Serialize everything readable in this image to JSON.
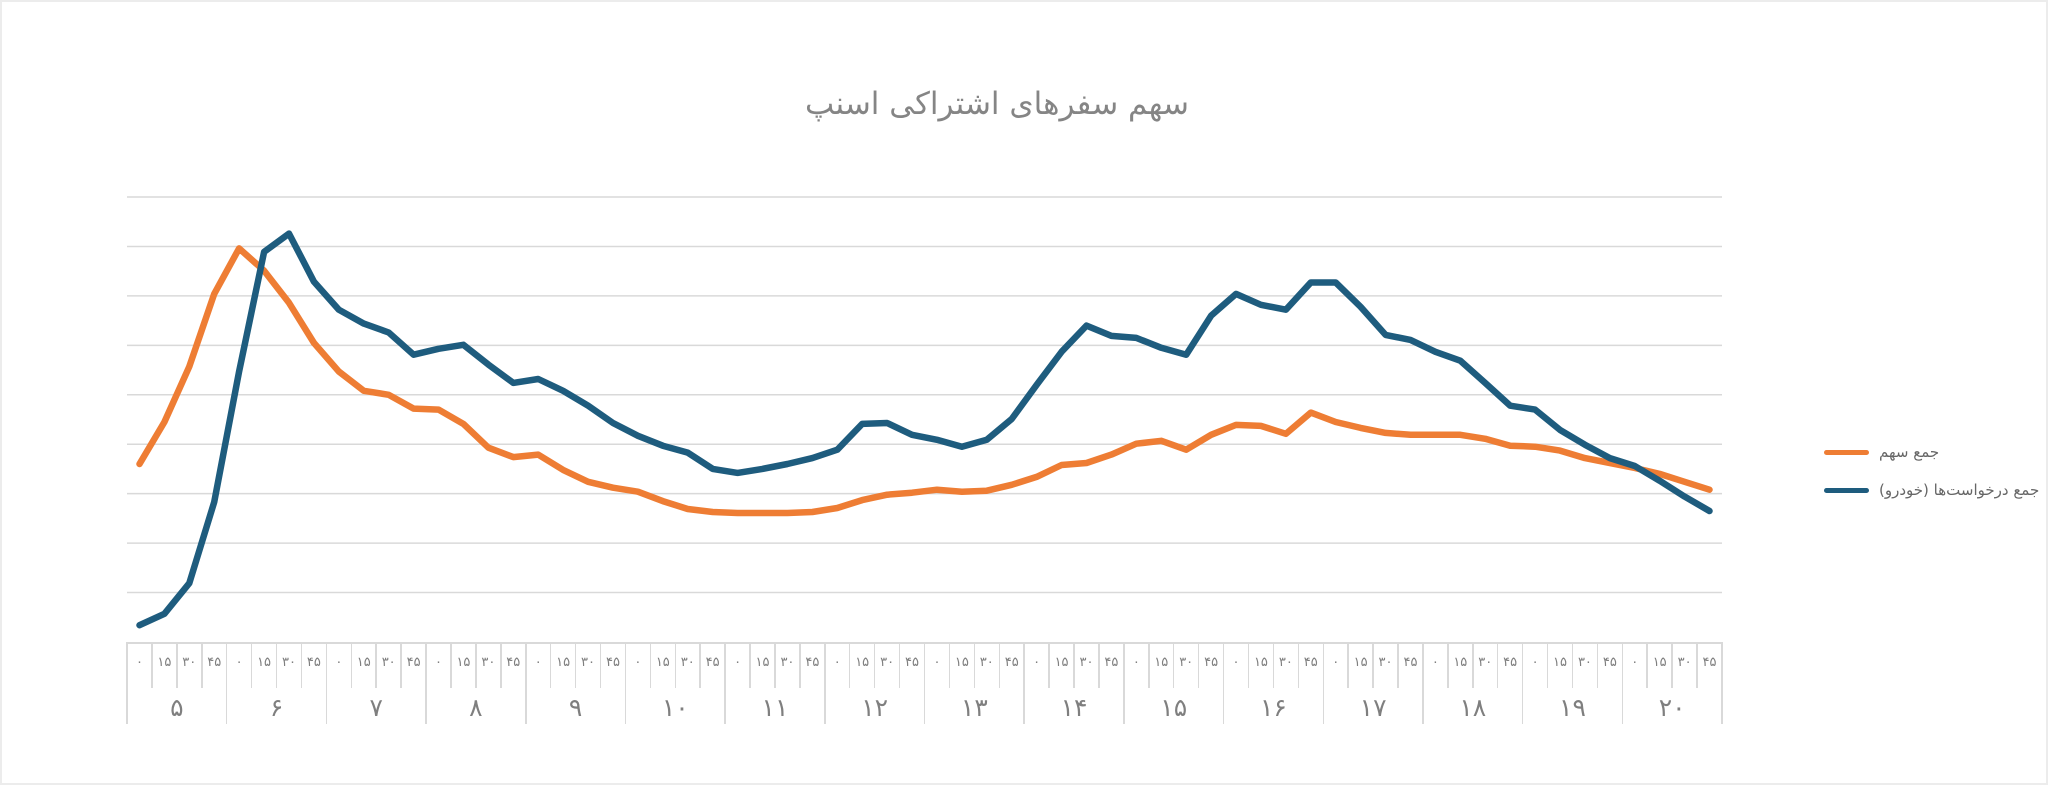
{
  "title": "سهم سفرهای اشتراکی اسنپ",
  "legend": [
    {
      "label": "جمع سهم",
      "color": "#EE7D34"
    },
    {
      "label": "جمع درخواست‌ها (خودرو)",
      "color": "#1E5C7E"
    }
  ],
  "x_axis": {
    "hours": [
      "۵",
      "۶",
      "۷",
      "۸",
      "۹",
      "۱۰",
      "۱۱",
      "۱۲",
      "۱۳",
      "۱۴",
      "۱۵",
      "۱۶",
      "۱۷",
      "۱۸",
      "۱۹",
      "۲۰"
    ],
    "minutes": [
      "۰",
      "۱۵",
      "۳۰",
      "۴۵"
    ]
  },
  "colors": {
    "grid": "#d9d9d9",
    "axis_text": "#7f7f7f",
    "title_text": "#858585",
    "legend_text": "#666666",
    "share_line": "#EE7D34",
    "requests_line": "#1E5C7E",
    "background": "#ffffff"
  },
  "chart_data": {
    "type": "line",
    "title": "سهم سفرهای اشتراکی اسنپ",
    "x_description": "Time of day in 15-minute steps from 05:00 to 20:45; axis labeled with Persian numerals (hours ۵–۲۰, minutes ۰/۱۵/۳۰/۴۵)",
    "x_start": "05:00",
    "x_end": "20:45",
    "x_step_minutes": 15,
    "y_axis": {
      "tick_labels": "none (unlabeled)",
      "unit": "gridline units",
      "range": [
        0,
        9
      ]
    },
    "grid": "horizontal gridlines only, 10 lines including baseline",
    "legend_position": "right, vertically centered",
    "series": [
      {
        "name": "جمع سهم",
        "color": "#EE7D34",
        "values": [
          3.6,
          4.45,
          5.57,
          7.04,
          7.96,
          7.51,
          6.86,
          6.05,
          5.47,
          5.08,
          5.0,
          4.72,
          4.7,
          4.41,
          3.93,
          3.74,
          3.79,
          3.48,
          3.24,
          3.12,
          3.04,
          2.85,
          2.69,
          2.63,
          2.61,
          2.61,
          2.61,
          2.63,
          2.71,
          2.87,
          2.98,
          3.02,
          3.08,
          3.04,
          3.06,
          3.18,
          3.34,
          3.58,
          3.62,
          3.79,
          4.01,
          4.07,
          3.89,
          4.19,
          4.39,
          4.37,
          4.21,
          4.64,
          4.45,
          4.33,
          4.23,
          4.19,
          4.19,
          4.19,
          4.11,
          3.97,
          3.95,
          3.87,
          3.72,
          3.62,
          3.52,
          3.4,
          3.24,
          3.08
        ]
      },
      {
        "name": "جمع درخواست‌ها (خودرو)",
        "color": "#1E5C7E",
        "values": [
          0.34,
          0.57,
          1.19,
          2.83,
          5.47,
          7.89,
          8.26,
          7.29,
          6.72,
          6.44,
          6.26,
          5.81,
          5.93,
          6.01,
          5.61,
          5.24,
          5.32,
          5.08,
          4.78,
          4.43,
          4.17,
          3.97,
          3.83,
          3.5,
          3.42,
          3.5,
          3.6,
          3.72,
          3.89,
          4.41,
          4.43,
          4.19,
          4.09,
          3.95,
          4.09,
          4.51,
          5.2,
          5.87,
          6.4,
          6.19,
          6.15,
          5.95,
          5.81,
          6.6,
          7.04,
          6.82,
          6.72,
          7.27,
          7.27,
          6.78,
          6.21,
          6.11,
          5.87,
          5.69,
          5.24,
          4.78,
          4.7,
          4.29,
          3.99,
          3.72,
          3.56,
          3.26,
          2.94,
          2.65
        ]
      }
    ]
  }
}
